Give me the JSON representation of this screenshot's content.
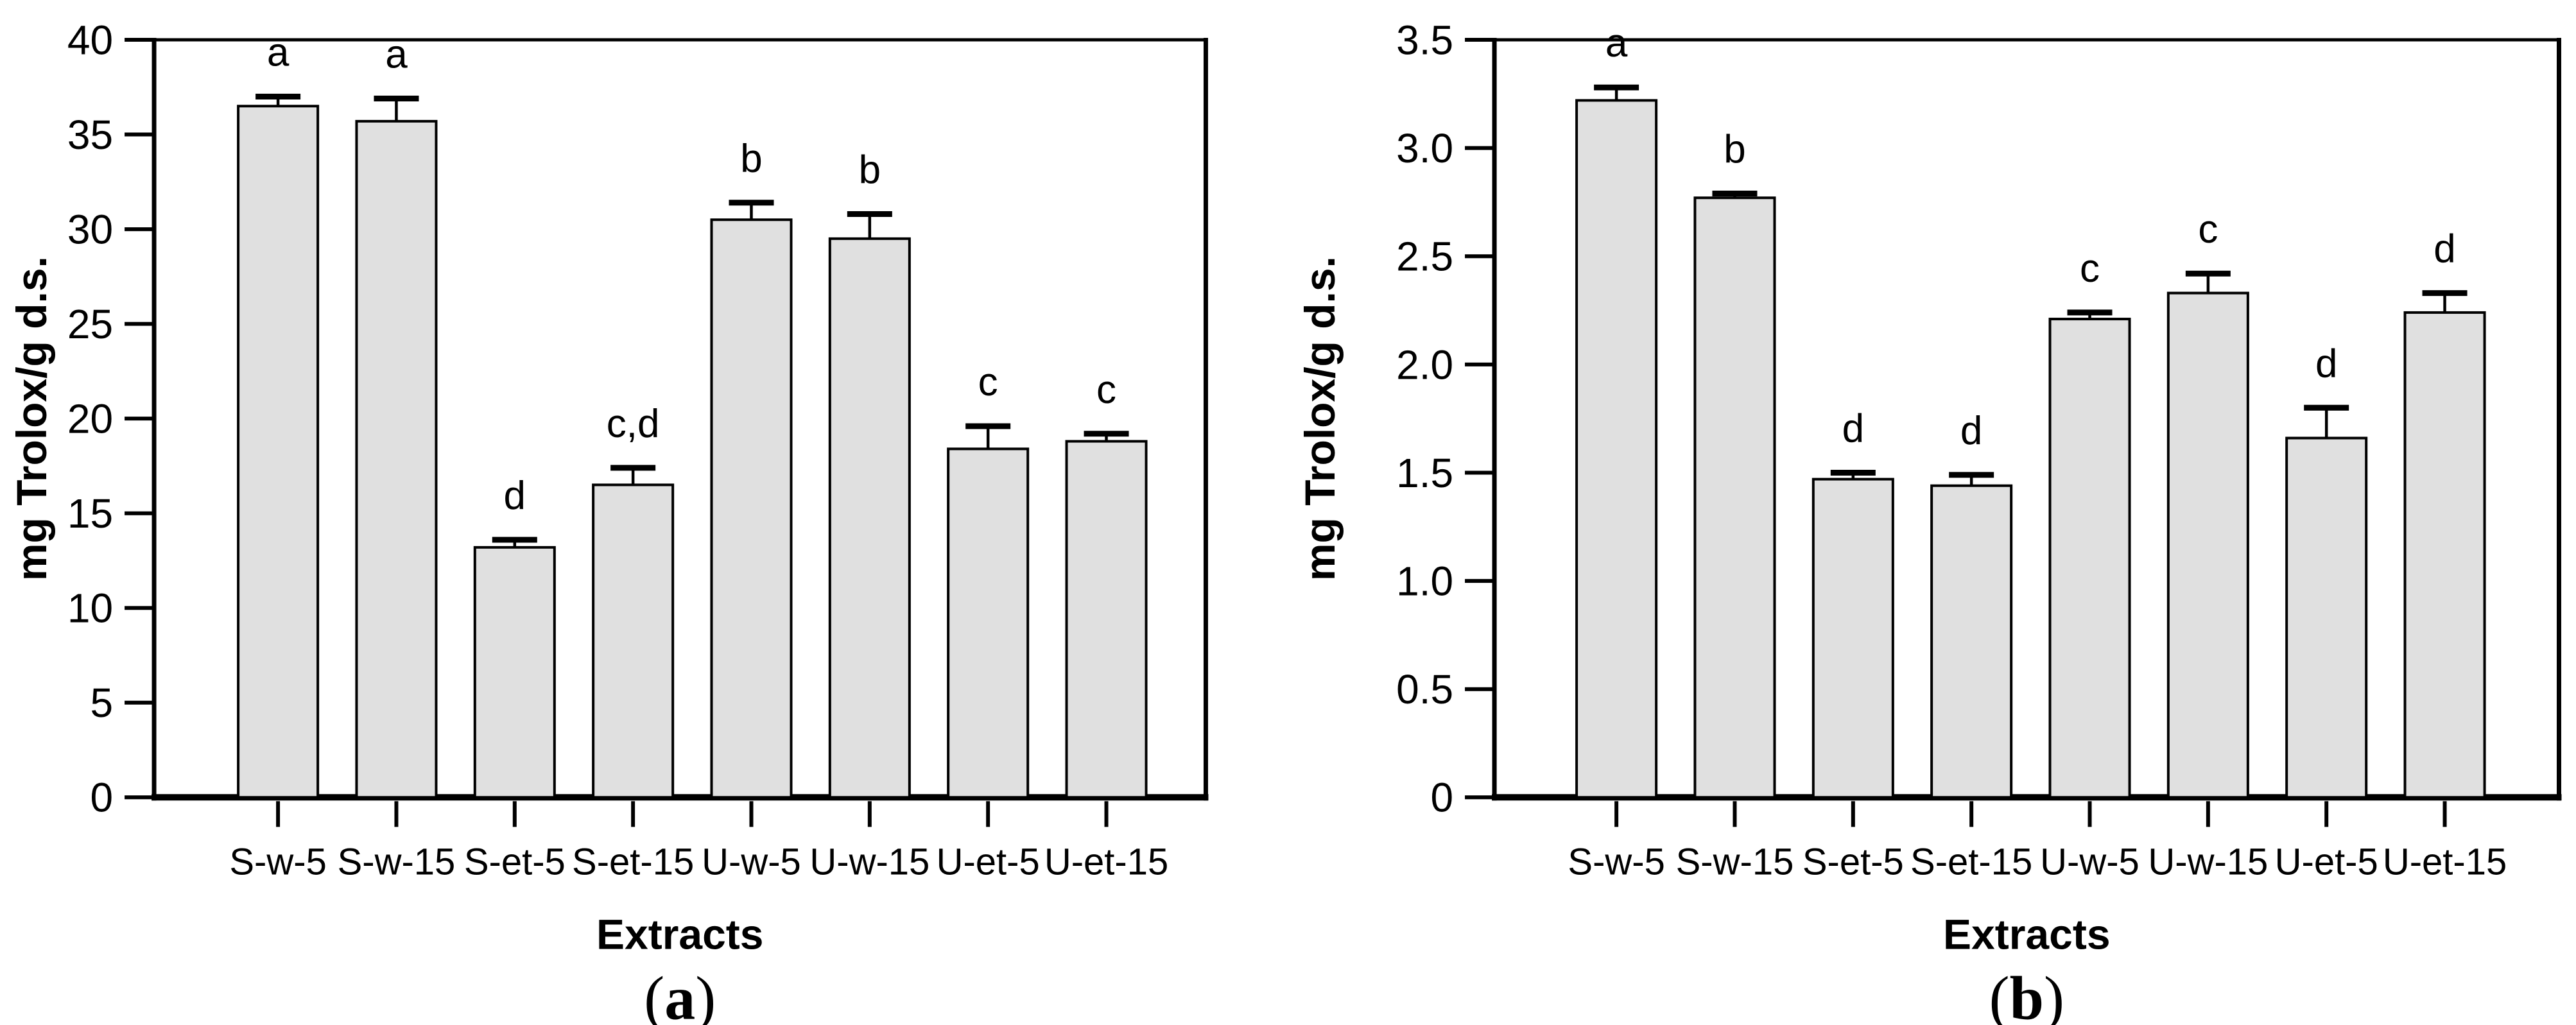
{
  "figure": {
    "background": "#ffffff",
    "bar_fill": "#e0e0e0",
    "bar_edge": "#000000",
    "text_color": "#000000"
  },
  "chart_data": [
    {
      "type": "bar",
      "panel": "a",
      "caption": {
        "open": "(",
        "letter": "a",
        "close": ")"
      },
      "xlabel": "Extracts",
      "ylabel": "mg Trolox/g d.s.",
      "ylim": [
        0,
        40
      ],
      "grid": false,
      "legend": null,
      "yticks": [
        {
          "v": 0,
          "label": "0"
        },
        {
          "v": 5,
          "label": "5"
        },
        {
          "v": 10,
          "label": "10"
        },
        {
          "v": 15,
          "label": "15"
        },
        {
          "v": 20,
          "label": "20"
        },
        {
          "v": 25,
          "label": "25"
        },
        {
          "v": 30,
          "label": "30"
        },
        {
          "v": 35,
          "label": "35"
        },
        {
          "v": 40,
          "label": "40"
        }
      ],
      "categories": [
        "S-w-5",
        "S-w-15",
        "S-et-5",
        "S-et-15",
        "U-w-5",
        "U-w-15",
        "U-et-5",
        "U-et-15"
      ],
      "values": [
        36.5,
        35.7,
        13.2,
        16.5,
        30.5,
        29.5,
        18.4,
        18.8
      ],
      "errors_upper": [
        0.5,
        1.2,
        0.4,
        0.9,
        0.9,
        1.3,
        1.2,
        0.4
      ],
      "sig_letters": [
        "a",
        "a",
        "d",
        "c,d",
        "b",
        "b",
        "c",
        "c"
      ]
    },
    {
      "type": "bar",
      "panel": "b",
      "caption": {
        "open": "(",
        "letter": "b",
        "close": ")"
      },
      "xlabel": "Extracts",
      "ylabel": "mg Trolox/g d.s.",
      "ylim": [
        0,
        3.5
      ],
      "grid": false,
      "legend": null,
      "yticks": [
        {
          "v": 0,
          "label": "0"
        },
        {
          "v": 0.5,
          "label": "0.5"
        },
        {
          "v": 1.0,
          "label": "1.0"
        },
        {
          "v": 1.5,
          "label": "1.5"
        },
        {
          "v": 2.0,
          "label": "2.0"
        },
        {
          "v": 2.5,
          "label": "2.5"
        },
        {
          "v": 3.0,
          "label": "3.0"
        },
        {
          "v": 3.5,
          "label": "3.5"
        }
      ],
      "categories": [
        "S-w-5",
        "S-w-15",
        "S-et-5",
        "S-et-15",
        "U-w-5",
        "U-w-15",
        "U-et-5",
        "U-et-15"
      ],
      "values": [
        3.22,
        2.77,
        1.47,
        1.44,
        2.21,
        2.33,
        1.66,
        2.24
      ],
      "errors_upper": [
        0.06,
        0.02,
        0.03,
        0.05,
        0.03,
        0.09,
        0.14,
        0.09
      ],
      "sig_letters": [
        "a",
        "b",
        "d",
        "d",
        "c",
        "c",
        "d",
        "d"
      ]
    }
  ]
}
